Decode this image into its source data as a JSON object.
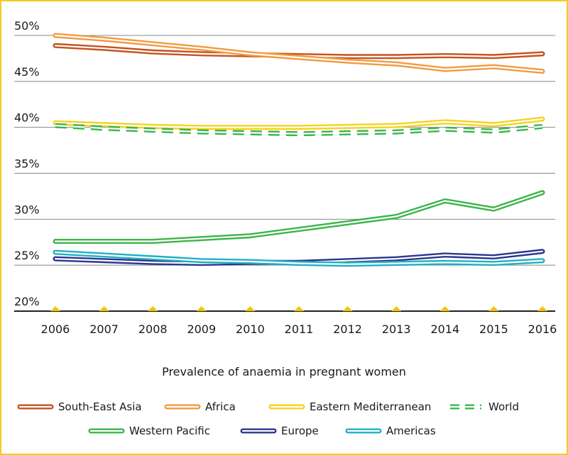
{
  "chart_data": {
    "type": "line",
    "title": "",
    "xlabel": "Prevalence of anaemia in pregnant women",
    "ylabel": "",
    "categories": [
      "2006",
      "2007",
      "2008",
      "2009",
      "2010",
      "2011",
      "2012",
      "2013",
      "2014",
      "2015",
      "2016"
    ],
    "y_ticks": [
      "20%",
      "25%",
      "30%",
      "35%",
      "40%",
      "45%",
      "50%"
    ],
    "ylim": [
      20,
      50
    ],
    "grid": true,
    "legend_position": "bottom",
    "series": [
      {
        "name": "South-East Asia",
        "color": "#c4531f",
        "dashed": false,
        "values": [
          48.9,
          48.6,
          48.2,
          48.0,
          47.9,
          47.8,
          47.7,
          47.7,
          47.8,
          47.7,
          48.0
        ]
      },
      {
        "name": "Africa",
        "color": "#f29a3f",
        "dashed": false,
        "values": [
          50.0,
          49.6,
          49.1,
          48.6,
          48.0,
          47.6,
          47.2,
          46.9,
          46.3,
          46.6,
          46.1
        ]
      },
      {
        "name": "Eastern Mediterranean",
        "color": "#f5d21f",
        "dashed": false,
        "values": [
          40.5,
          40.3,
          40.1,
          40.0,
          40.0,
          40.0,
          40.1,
          40.2,
          40.6,
          40.3,
          40.9
        ]
      },
      {
        "name": "World",
        "color": "#3cb54a",
        "dashed": true,
        "values": [
          40.2,
          39.9,
          39.7,
          39.5,
          39.4,
          39.3,
          39.4,
          39.5,
          39.8,
          39.6,
          40.1
        ]
      },
      {
        "name": "Western Pacific",
        "color": "#3cb54a",
        "dashed": false,
        "values": [
          27.6,
          27.6,
          27.6,
          27.9,
          28.2,
          28.9,
          29.6,
          30.3,
          32.0,
          31.1,
          32.9
        ]
      },
      {
        "name": "Europe",
        "color": "#2b3590",
        "dashed": false,
        "values": [
          25.7,
          25.5,
          25.3,
          25.2,
          25.3,
          25.3,
          25.5,
          25.7,
          26.1,
          25.9,
          26.5
        ]
      },
      {
        "name": "Americas",
        "color": "#22b0c2",
        "dashed": false,
        "values": [
          26.4,
          26.1,
          25.8,
          25.5,
          25.4,
          25.2,
          25.1,
          25.2,
          25.3,
          25.2,
          25.5
        ]
      }
    ]
  }
}
